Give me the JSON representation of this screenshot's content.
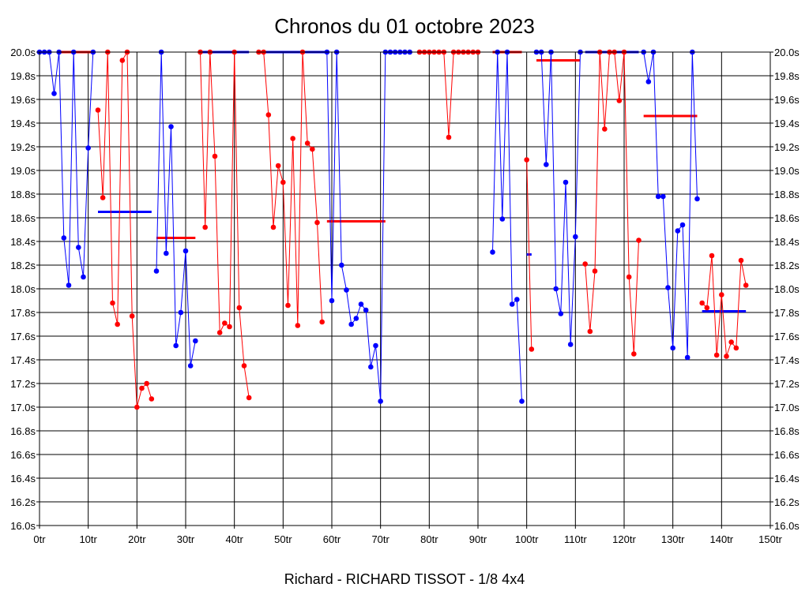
{
  "chart_data": {
    "type": "line",
    "title": "Chronos du 01 octobre 2023",
    "footer": "Richard - RICHARD TISSOT - 1/8 4x4",
    "x_ticks": [
      "0tr",
      "10tr",
      "20tr",
      "30tr",
      "40tr",
      "50tr",
      "60tr",
      "70tr",
      "80tr",
      "90tr",
      "100tr",
      "110tr",
      "120tr",
      "130tr",
      "140tr",
      "150tr"
    ],
    "y_ticks": [
      "20.0s",
      "19.8s",
      "19.6s",
      "19.4s",
      "19.2s",
      "19.0s",
      "18.8s",
      "18.6s",
      "18.4s",
      "18.2s",
      "18.0s",
      "17.8s",
      "17.6s",
      "17.4s",
      "17.2s",
      "17.0s",
      "16.8s",
      "16.6s",
      "16.4s",
      "16.2s",
      "16.0s"
    ],
    "xlim": [
      0,
      150
    ],
    "ylim": [
      16.0,
      20.0
    ],
    "grid": true,
    "colors": {
      "blue": "#0000ff",
      "red": "#ff0000"
    },
    "series": [
      {
        "color": "blue",
        "points": [
          [
            0,
            20.0
          ],
          [
            1,
            20.0
          ],
          [
            2,
            20.0
          ],
          [
            3,
            19.65
          ],
          [
            4,
            20.0
          ],
          [
            5,
            18.43
          ],
          [
            6,
            18.03
          ],
          [
            7,
            20.0
          ],
          [
            8,
            18.35
          ],
          [
            9,
            18.1
          ],
          [
            10,
            19.19
          ],
          [
            11,
            20.0
          ]
        ]
      },
      {
        "color": "red",
        "points": [
          [
            12,
            19.51
          ],
          [
            13,
            18.77
          ],
          [
            14,
            20.0
          ],
          [
            15,
            17.88
          ],
          [
            16,
            17.7
          ],
          [
            17,
            19.93
          ],
          [
            18,
            20.0
          ],
          [
            19,
            17.77
          ],
          [
            20,
            17.0
          ],
          [
            21,
            17.16
          ],
          [
            22,
            17.2
          ],
          [
            23,
            17.07
          ]
        ]
      },
      {
        "color": "blue",
        "points": [
          [
            24,
            18.15
          ],
          [
            25,
            20.0
          ],
          [
            26,
            18.3
          ],
          [
            27,
            19.37
          ],
          [
            28,
            17.52
          ],
          [
            29,
            17.8
          ],
          [
            30,
            18.32
          ],
          [
            31,
            17.35
          ],
          [
            32,
            17.56
          ]
        ]
      },
      {
        "color": "red",
        "points": [
          [
            33,
            20.0
          ],
          [
            34,
            18.52
          ],
          [
            35,
            20.0
          ],
          [
            36,
            19.12
          ],
          [
            37,
            17.63
          ],
          [
            38,
            17.71
          ],
          [
            39,
            17.68
          ],
          [
            40,
            20.0
          ],
          [
            41,
            17.84
          ],
          [
            42,
            17.35
          ],
          [
            43,
            17.08
          ]
        ]
      },
      {
        "color": "red",
        "points": [
          [
            45,
            20.0
          ],
          [
            46,
            20.0
          ],
          [
            47,
            19.47
          ],
          [
            48,
            18.52
          ],
          [
            49,
            19.04
          ],
          [
            50,
            18.9
          ],
          [
            51,
            17.86
          ],
          [
            52,
            19.27
          ],
          [
            53,
            17.69
          ],
          [
            54,
            20.0
          ],
          [
            55,
            19.23
          ],
          [
            56,
            19.18
          ],
          [
            57,
            18.56
          ],
          [
            58,
            17.72
          ]
        ]
      },
      {
        "color": "blue",
        "points": [
          [
            59,
            20.0
          ],
          [
            60,
            17.9
          ],
          [
            61,
            20.0
          ],
          [
            62,
            18.2
          ],
          [
            63,
            17.99
          ],
          [
            64,
            17.7
          ],
          [
            65,
            17.75
          ],
          [
            66,
            17.87
          ],
          [
            67,
            17.82
          ],
          [
            68,
            17.34
          ],
          [
            69,
            17.52
          ],
          [
            70,
            17.05
          ],
          [
            71,
            20.0
          ]
        ]
      },
      {
        "color": "blue",
        "points": [
          [
            72,
            20.0
          ],
          [
            73,
            20.0
          ],
          [
            74,
            20.0
          ],
          [
            75,
            20.0
          ],
          [
            76,
            20.0
          ]
        ]
      },
      {
        "color": "red",
        "points": [
          [
            78,
            20.0
          ],
          [
            79,
            20.0
          ],
          [
            80,
            20.0
          ],
          [
            81,
            20.0
          ],
          [
            82,
            20.0
          ],
          [
            83,
            20.0
          ],
          [
            84,
            19.28
          ],
          [
            85,
            20.0
          ],
          [
            86,
            20.0
          ],
          [
            87,
            20.0
          ],
          [
            88,
            20.0
          ],
          [
            89,
            20.0
          ],
          [
            90,
            20.0
          ]
        ]
      },
      {
        "color": "blue",
        "points": [
          [
            93,
            18.31
          ],
          [
            94,
            20.0
          ],
          [
            95,
            18.59
          ],
          [
            96,
            20.0
          ],
          [
            97,
            17.87
          ],
          [
            98,
            17.91
          ],
          [
            99,
            17.05
          ]
        ]
      },
      {
        "color": "red",
        "points": [
          [
            100,
            19.09
          ],
          [
            101,
            17.49
          ]
        ]
      },
      {
        "color": "blue",
        "points": [
          [
            102,
            20.0
          ],
          [
            103,
            20.0
          ],
          [
            104,
            19.05
          ],
          [
            105,
            20.0
          ],
          [
            106,
            18.0
          ],
          [
            107,
            17.79
          ],
          [
            108,
            18.9
          ],
          [
            109,
            17.53
          ],
          [
            110,
            18.44
          ],
          [
            111,
            20.0
          ]
        ]
      },
      {
        "color": "red",
        "points": [
          [
            112,
            18.21
          ],
          [
            113,
            17.64
          ],
          [
            114,
            18.15
          ],
          [
            115,
            20.0
          ],
          [
            116,
            19.35
          ],
          [
            117,
            20.0
          ],
          [
            118,
            20.0
          ],
          [
            119,
            19.59
          ],
          [
            120,
            20.0
          ],
          [
            121,
            18.1
          ],
          [
            122,
            17.45
          ],
          [
            123,
            18.41
          ]
        ]
      },
      {
        "color": "blue",
        "points": [
          [
            124,
            20.0
          ],
          [
            125,
            19.75
          ],
          [
            126,
            20.0
          ],
          [
            127,
            18.78
          ],
          [
            128,
            18.78
          ],
          [
            129,
            18.01
          ],
          [
            130,
            17.5
          ],
          [
            131,
            18.49
          ],
          [
            132,
            18.54
          ],
          [
            133,
            17.42
          ],
          [
            134,
            20.0
          ],
          [
            135,
            18.76
          ]
        ]
      },
      {
        "color": "red",
        "points": [
          [
            136,
            17.88
          ],
          [
            137,
            17.84
          ],
          [
            138,
            18.28
          ],
          [
            139,
            17.44
          ],
          [
            140,
            17.95
          ],
          [
            141,
            17.43
          ],
          [
            142,
            17.55
          ],
          [
            143,
            17.5
          ],
          [
            144,
            18.24
          ],
          [
            145,
            18.03
          ]
        ]
      }
    ],
    "averages": [
      {
        "color": "red",
        "x": [
          4,
          11
        ],
        "y": 20.0
      },
      {
        "color": "blue",
        "x": [
          12,
          23
        ],
        "y": 18.65
      },
      {
        "color": "red",
        "x": [
          24,
          32
        ],
        "y": 18.43
      },
      {
        "color": "blue",
        "x": [
          33,
          43
        ],
        "y": 20.0
      },
      {
        "color": "blue",
        "x": [
          45,
          59
        ],
        "y": 20.0
      },
      {
        "color": "red",
        "x": [
          59,
          71
        ],
        "y": 18.57
      },
      {
        "color": "red",
        "x": [
          93,
          99
        ],
        "y": 20.0
      },
      {
        "color": "blue",
        "x": [
          100,
          101
        ],
        "y": 18.29
      },
      {
        "color": "red",
        "x": [
          102,
          111
        ],
        "y": 19.93
      },
      {
        "color": "blue",
        "x": [
          112,
          123
        ],
        "y": 20.0
      },
      {
        "color": "red",
        "x": [
          124,
          135
        ],
        "y": 19.46
      },
      {
        "color": "blue",
        "x": [
          136,
          145
        ],
        "y": 17.81
      }
    ]
  }
}
